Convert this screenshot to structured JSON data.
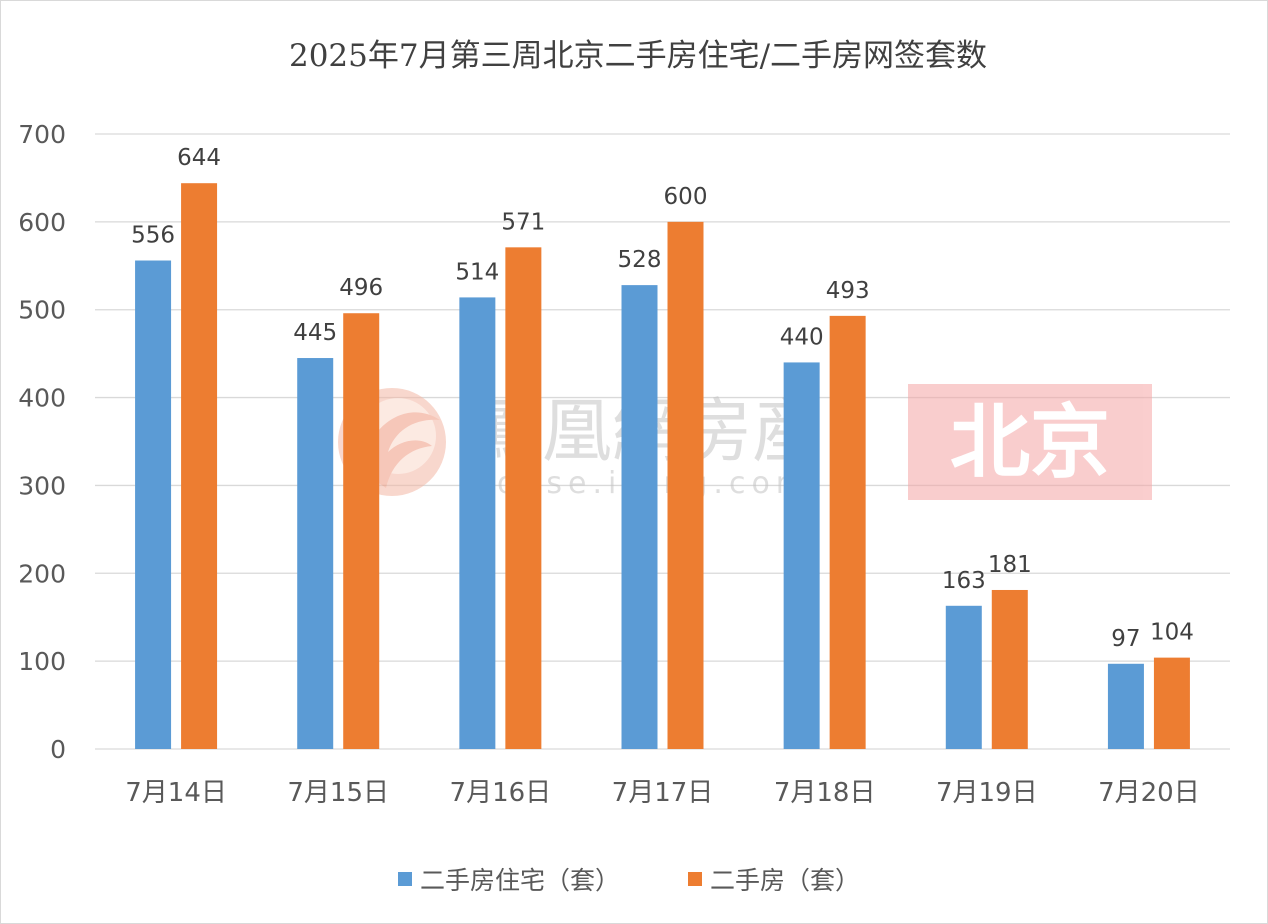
{
  "chart_data": {
    "type": "bar",
    "title": "2025年7月第三周北京二手房住宅/二手房网签套数",
    "categories": [
      "7月14日",
      "7月15日",
      "7月16日",
      "7月17日",
      "7月18日",
      "7月19日",
      "7月20日"
    ],
    "series": [
      {
        "name": "二手房住宅（套）",
        "color": "#5b9bd5",
        "values": [
          556,
          445,
          514,
          528,
          440,
          163,
          97
        ]
      },
      {
        "name": "二手房（套）",
        "color": "#ed7d31",
        "values": [
          644,
          496,
          571,
          600,
          493,
          181,
          104
        ]
      }
    ],
    "y_ticks": [
      "0",
      "100",
      "200",
      "300",
      "400",
      "500",
      "600",
      "700"
    ],
    "ylim": [
      0,
      700
    ],
    "grid": true,
    "legend_position": "bottom",
    "data_labels": true
  },
  "watermark": {
    "brand": "鳳凰網房産",
    "url": "house.ifeng.com",
    "city": "北京"
  }
}
